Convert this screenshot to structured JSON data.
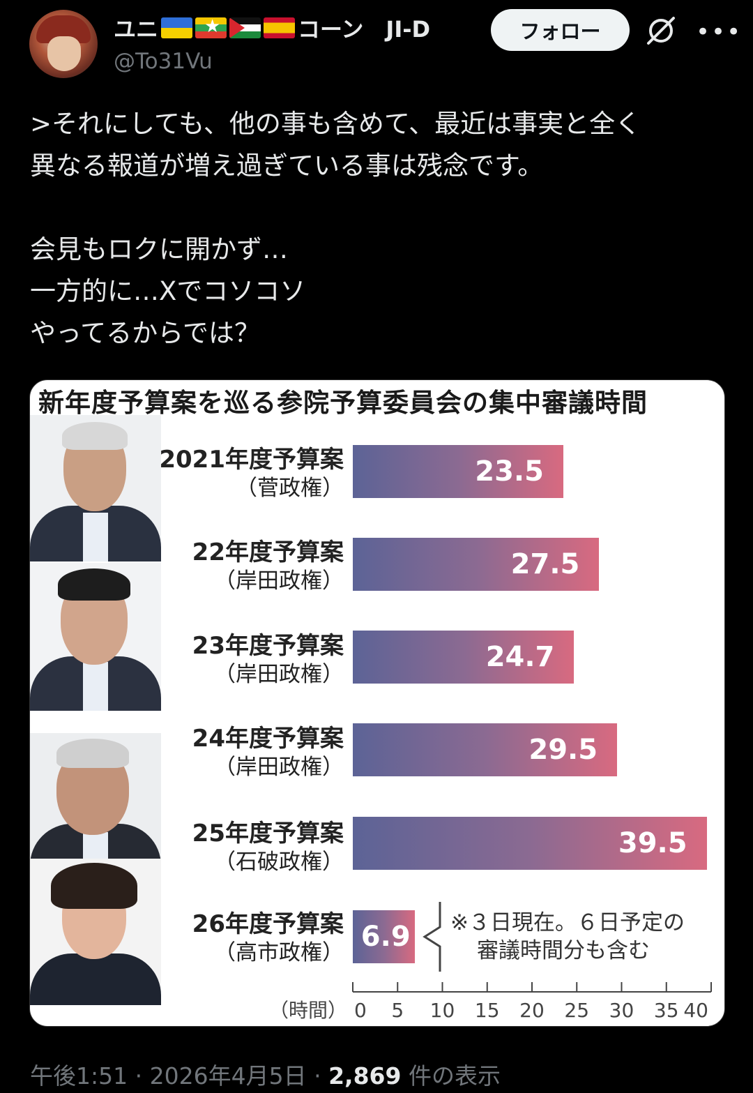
{
  "author": {
    "display_name_prefix": "ユニ",
    "display_name_suffix": "コーン　JI-D",
    "flags": [
      "ukraine-flag",
      "myanmar-flag",
      "palestine-flag",
      "spain-flag"
    ],
    "handle": "@To31Vu"
  },
  "follow_button": {
    "label": "フォロー"
  },
  "tweet": {
    "text": ">それにしても、他の事も含めて、最近は事実と全く\n異なる報道が増え過ぎている事は残念です。\n\n会見もロクに開かず…\n一方的に…Xでコソコソ\nやってるからでは？"
  },
  "chart_data": {
    "type": "bar",
    "title": "新年度予算案を巡る参院予算委員会の集中審議時間",
    "categories": [
      "2021年度予算案",
      "22年度予算案",
      "23年度予算案",
      "24年度予算案",
      "25年度予算案",
      "26年度予算案"
    ],
    "sublabels": [
      "（菅政権）",
      "（岸田政権）",
      "（岸田政権）",
      "（岸田政権）",
      "（石破政権）",
      "（高市政権）"
    ],
    "values": [
      23.5,
      27.5,
      24.7,
      29.5,
      39.5,
      6.9
    ],
    "value_labels": [
      "23.5",
      "27.5",
      "24.7",
      "29.5",
      "39.5",
      "6.9"
    ],
    "xlabel": "（時間）",
    "xlim": [
      0,
      40
    ],
    "ticks": [
      "0",
      "5",
      "10",
      "15",
      "20",
      "25",
      "30",
      "35",
      "40"
    ],
    "note": [
      "※３日現在。６日予定の",
      "審議時間分も含む"
    ],
    "colors": {
      "bar_start": "#5c6396",
      "bar_end": "#d86a80"
    }
  },
  "meta": {
    "time": "午後1:51",
    "date": "2026年4月5日",
    "views_count": "2,869",
    "views_label": "件の表示",
    "separator": "·"
  },
  "icons": {
    "no_ai": "no-grok-icon",
    "more": "more-icon"
  }
}
